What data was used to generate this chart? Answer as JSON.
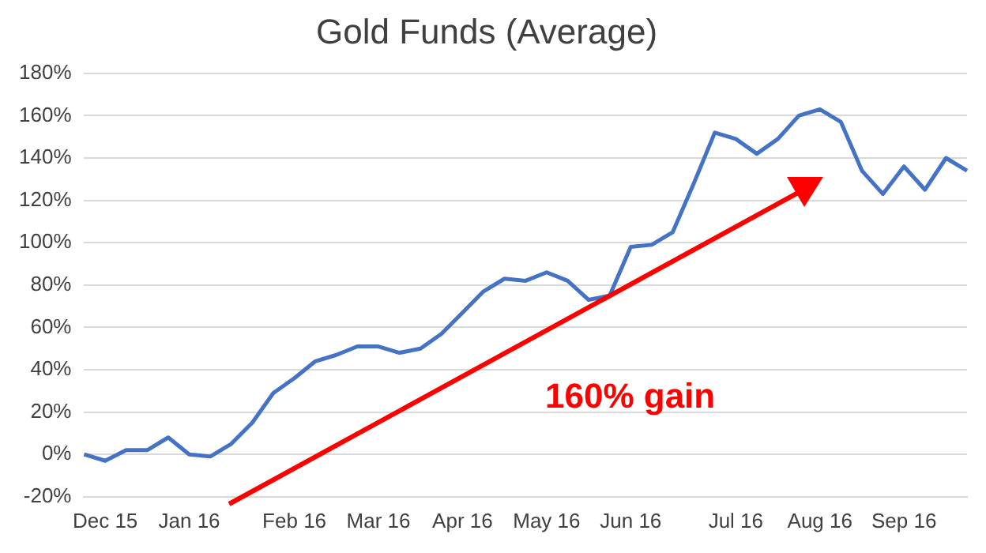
{
  "chart_data": {
    "type": "line",
    "title": "Gold Funds (Average)",
    "categories": [
      null,
      "Dec 15",
      null,
      null,
      null,
      "Jan 16",
      null,
      null,
      null,
      null,
      "Feb 16",
      null,
      null,
      null,
      "Mar 16",
      null,
      null,
      null,
      "Apr 16",
      null,
      null,
      null,
      "May 16",
      null,
      null,
      null,
      "Jun 16",
      null,
      null,
      null,
      null,
      "Jul 16",
      null,
      null,
      null,
      "Aug 16",
      null,
      null,
      null,
      "Sep 16",
      null,
      null,
      null
    ],
    "series": [
      {
        "color": "#4472c4",
        "values": [
          0,
          -3,
          2,
          2,
          8,
          0,
          -1,
          5,
          15,
          29,
          36,
          44,
          47,
          51,
          51,
          48,
          50,
          57,
          67,
          77,
          83,
          82,
          86,
          82,
          73,
          75,
          98,
          99,
          105,
          128,
          152,
          149,
          142,
          149,
          160,
          163,
          157,
          134,
          123,
          136,
          125,
          140,
          134
        ]
      }
    ],
    "ylim": [
      -20,
      180
    ],
    "yticks": [
      {
        "value": -20,
        "label": "-20%"
      },
      {
        "value": 0,
        "label": "0%"
      },
      {
        "value": 20,
        "label": "20%"
      },
      {
        "value": 40,
        "label": "40%"
      },
      {
        "value": 60,
        "label": "60%"
      },
      {
        "value": 80,
        "label": "80%"
      },
      {
        "value": 100,
        "label": "100%"
      },
      {
        "value": 120,
        "label": "120%"
      },
      {
        "value": 140,
        "label": "140%"
      },
      {
        "value": 160,
        "label": "160%"
      },
      {
        "value": 180,
        "label": "180%"
      }
    ],
    "grid": "y",
    "legend": false,
    "marker": "none",
    "line_style": "solid",
    "annotations": [
      "160% gain"
    ]
  }
}
